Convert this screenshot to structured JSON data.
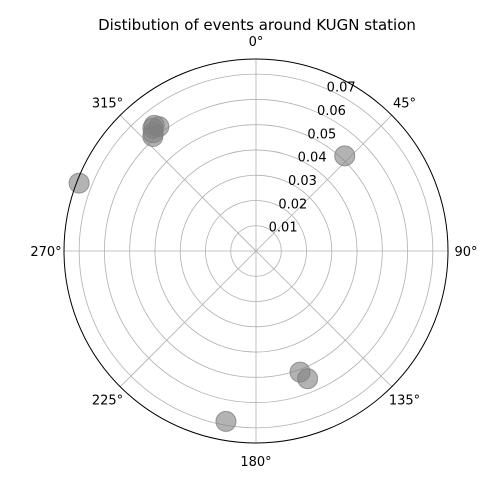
{
  "chart_data": {
    "type": "scatter",
    "projection": "polar",
    "title": "Distibution of events around KUGN station",
    "theta_zero_location": "N",
    "theta_direction": "clockwise",
    "theta_ticks": [
      {
        "deg": 0,
        "label": "0°"
      },
      {
        "deg": 45,
        "label": "45°"
      },
      {
        "deg": 90,
        "label": "90°"
      },
      {
        "deg": 135,
        "label": "135°"
      },
      {
        "deg": 180,
        "label": "180°"
      },
      {
        "deg": 225,
        "label": "225°"
      },
      {
        "deg": 270,
        "label": "270°"
      },
      {
        "deg": 315,
        "label": "315°"
      }
    ],
    "r_ticks": [
      {
        "value": 0.01,
        "label": "0.01"
      },
      {
        "value": 0.02,
        "label": "0.02"
      },
      {
        "value": 0.03,
        "label": "0.03"
      },
      {
        "value": 0.04,
        "label": "0.04"
      },
      {
        "value": 0.05,
        "label": "0.05"
      },
      {
        "value": 0.06,
        "label": "0.06"
      },
      {
        "value": 0.07,
        "label": "0.07"
      }
    ],
    "r_range": [
      0,
      0.076
    ],
    "r_label_angle_deg": 22.5,
    "grid": true,
    "marker_color": "#808080",
    "marker_alpha": 0.6,
    "points": [
      {
        "theta_deg": 43,
        "r": 0.0515
      },
      {
        "theta_deg": 321,
        "r": 0.064
      },
      {
        "theta_deg": 322,
        "r": 0.0625
      },
      {
        "theta_deg": 320,
        "r": 0.0635
      },
      {
        "theta_deg": 319,
        "r": 0.062
      },
      {
        "theta_deg": 318,
        "r": 0.061
      },
      {
        "theta_deg": 291,
        "r": 0.075
      },
      {
        "theta_deg": 158,
        "r": 0.0545
      },
      {
        "theta_deg": 160,
        "r": 0.051
      },
      {
        "theta_deg": 190,
        "r": 0.0685
      }
    ]
  }
}
